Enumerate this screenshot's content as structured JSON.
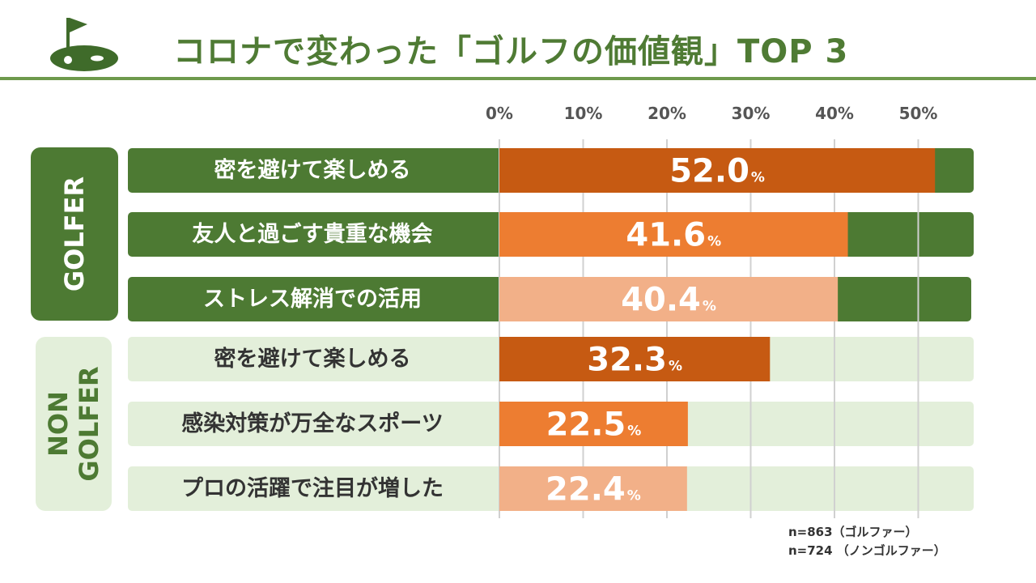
{
  "title": "コロナで変わった「ゴルフの価値観」TOP 3",
  "colors": {
    "golfer_band": "#4d7a33",
    "nongolfer_band": "#e3efda",
    "rank1": "#c65a12",
    "rank2": "#ed7d31",
    "rank3": "#f2b088",
    "title": "#4f7b34",
    "rule": "#6e9a4c",
    "grid": "#d0d0d0"
  },
  "notes": [
    "n=863（ゴルファー）",
    "n=724 （ノンゴルファー）"
  ],
  "chart_data": {
    "type": "bar",
    "orientation": "horizontal",
    "x_ticks": [
      "0%",
      "10%",
      "20%",
      "30%",
      "40%",
      "50%"
    ],
    "xlim": [
      0,
      57
    ],
    "unit": "%",
    "groups": [
      {
        "name": "GOLFER",
        "items": [
          {
            "label": "密を避けて楽しめる",
            "value": 52.0,
            "value_text": "52.0"
          },
          {
            "label": "友人と過ごす貴重な機会",
            "value": 41.6,
            "value_text": "41.6"
          },
          {
            "label": "ストレス解消での活用",
            "value": 40.4,
            "value_text": "40.4"
          }
        ]
      },
      {
        "name": "NON\nGOLFER",
        "items": [
          {
            "label": "密を避けて楽しめる",
            "value": 32.3,
            "value_text": "32.3"
          },
          {
            "label": "感染対策が万全なスポーツ",
            "value": 22.5,
            "value_text": "22.5"
          },
          {
            "label": "プロの活躍で注目が増した",
            "value": 22.4,
            "value_text": "22.4"
          }
        ]
      }
    ]
  }
}
